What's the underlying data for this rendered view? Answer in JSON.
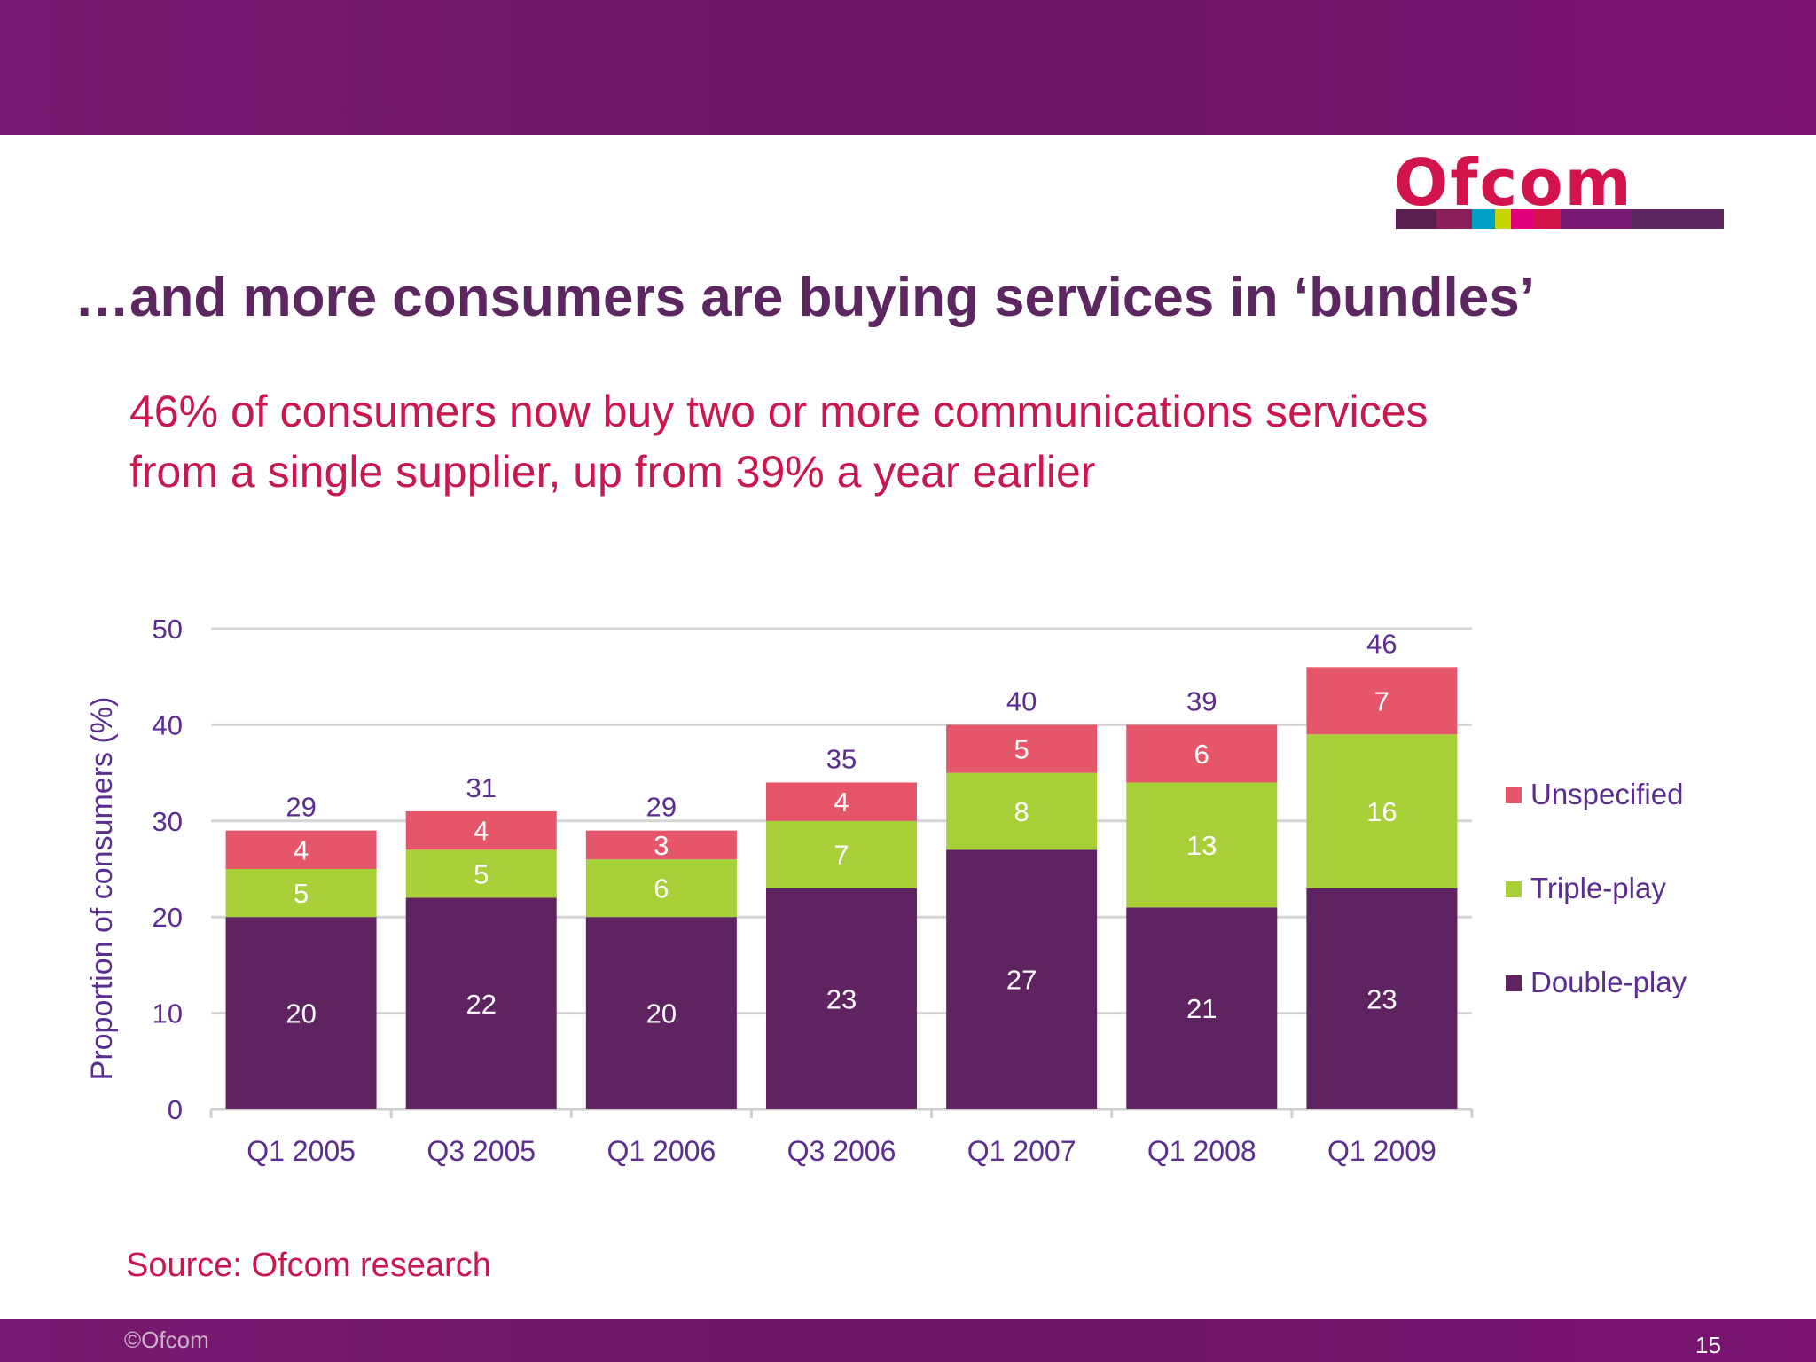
{
  "header": {
    "logo_text": "Ofcom",
    "logo_stripe_colors": [
      "#5a1f4f",
      "#8a1f5a",
      "#00a0c6",
      "#c8d400",
      "#e2007a",
      "#d2134c",
      "#7a1a72",
      "#5c2760"
    ]
  },
  "slide": {
    "title": "…and more consumers are buying services in ‘bundles’",
    "subtitle_line1": "46% of consumers now buy two or more communications services",
    "subtitle_line2": "from a single supplier, up from 39% a year earlier",
    "source": "Source: Ofcom research",
    "copyright": "©Ofcom",
    "page_number": "15"
  },
  "chart_data": {
    "type": "bar",
    "stacked": true,
    "categories": [
      "Q1 2005",
      "Q3 2005",
      "Q1 2006",
      "Q3 2006",
      "Q1 2007",
      "Q1 2008",
      "Q1 2009"
    ],
    "series": [
      {
        "name": "Double-play",
        "color": "#5f2361",
        "values": [
          20,
          22,
          20,
          23,
          27,
          21,
          23
        ]
      },
      {
        "name": "Triple-play",
        "color": "#a6cf38",
        "values": [
          5,
          5,
          6,
          7,
          8,
          13,
          16
        ]
      },
      {
        "name": "Unspecified",
        "color": "#e6566a",
        "values": [
          4,
          4,
          3,
          4,
          5,
          6,
          7
        ]
      }
    ],
    "totals": [
      29,
      31,
      29,
      35,
      40,
      39,
      46
    ],
    "ylabel": "Proportion of consumers (%)",
    "xlabel": "",
    "ylim": [
      0,
      50
    ],
    "yticks": [
      0,
      10,
      20,
      30,
      40,
      50
    ],
    "grid": true,
    "legend_position": "right"
  }
}
